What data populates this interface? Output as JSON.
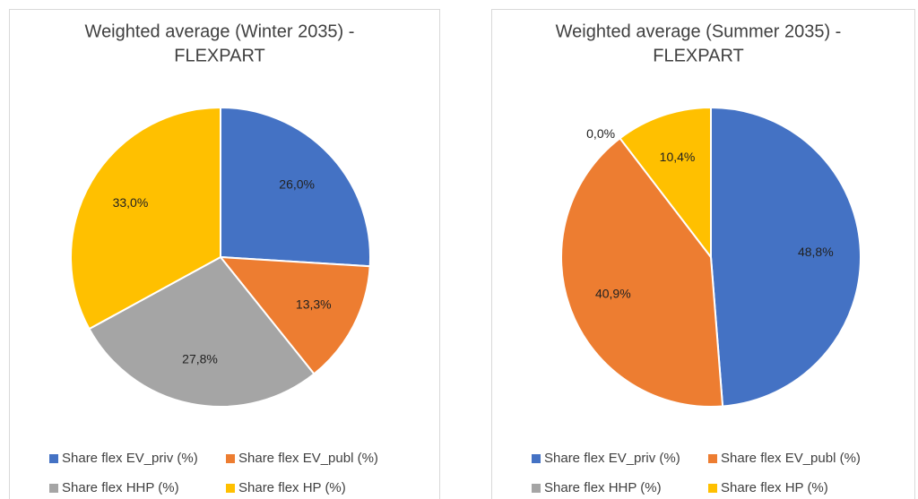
{
  "chart_data": [
    {
      "type": "pie",
      "title": [
        "Weighted average (Winter 2035) -",
        "FLEXPART"
      ],
      "categories": [
        "Share flex EV_priv (%)",
        "Share flex EV_publ (%)",
        "Share flex HHP (%)",
        "Share flex HP (%)"
      ],
      "values": [
        26.0,
        13.3,
        27.8,
        33.0
      ],
      "value_labels": [
        "26,0%",
        "13,3%",
        "27,8%",
        "33,0%"
      ],
      "colors": [
        "#4472c4",
        "#ed7d31",
        "#a5a5a5",
        "#ffc000"
      ],
      "legend": "bottom"
    },
    {
      "type": "pie",
      "title": [
        "Weighted average (Summer 2035) -",
        "FLEXPART"
      ],
      "categories": [
        "Share flex EV_priv (%)",
        "Share flex EV_publ (%)",
        "Share flex HHP (%)",
        "Share flex HP (%)"
      ],
      "values": [
        48.8,
        40.9,
        0.0,
        10.4
      ],
      "value_labels": [
        "48,8%",
        "40,9%",
        "0,0%",
        "10,4%"
      ],
      "colors": [
        "#4472c4",
        "#ed7d31",
        "#a5a5a5",
        "#ffc000"
      ],
      "legend": "bottom"
    }
  ]
}
